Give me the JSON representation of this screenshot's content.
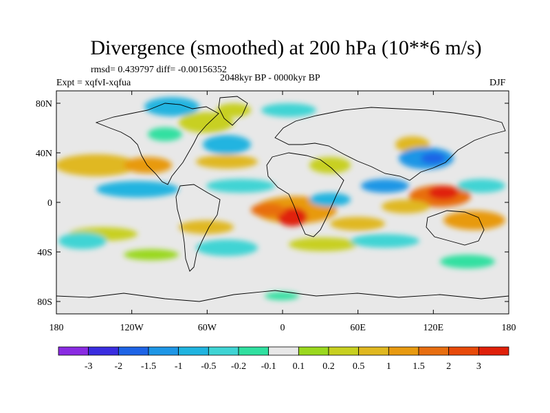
{
  "title": "Divergence (smoothed) at 200 hPa (10**6 m/s)",
  "stats": "rmsd= 0.439797 diff= -0.00156352",
  "experiment": "Expt = xqfvI-xqfua",
  "period": "2048kyr BP - 0000kyr BP",
  "season": "DJF",
  "lat_ticks": [
    {
      "value": 80,
      "label": "80N"
    },
    {
      "value": 40,
      "label": "40N"
    },
    {
      "value": 0,
      "label": "0"
    },
    {
      "value": -40,
      "label": "40S"
    },
    {
      "value": -80,
      "label": "80S"
    }
  ],
  "lon_ticks": [
    {
      "value": -180,
      "label": "180"
    },
    {
      "value": -120,
      "label": "120W"
    },
    {
      "value": -60,
      "label": "60W"
    },
    {
      "value": 0,
      "label": "0"
    },
    {
      "value": 60,
      "label": "60E"
    },
    {
      "value": 120,
      "label": "120E"
    },
    {
      "value": 180,
      "label": "180"
    }
  ],
  "colorbar": {
    "colors": [
      "#8a2be2",
      "#3a2de0",
      "#1e64e6",
      "#1e96e6",
      "#20b4e0",
      "#3fd4d4",
      "#30e0a0",
      "#e8e8e8",
      "#9ad81e",
      "#c8d020",
      "#e0b820",
      "#e89a10",
      "#e86e10",
      "#e84a0a",
      "#e0200a"
    ],
    "labels": [
      "-3",
      "-2",
      "-1.5",
      "-1",
      "-0.5",
      "-0.2",
      "-0.1",
      "0.1",
      "0.2",
      "0.5",
      "1",
      "1.5",
      "2",
      "3"
    ]
  },
  "map_colors": {
    "neutral": "#e8e8e8",
    "neg_weak": "#30e0a0",
    "neg_mid": "#3fd4d4",
    "neg_strong": "#20b4e0",
    "neg_stronger": "#1e96e6",
    "neg_max": "#1e64e6",
    "pos_weak": "#9ad81e",
    "pos_mid": "#c8d020",
    "pos_strong": "#e0b820",
    "pos_stronger": "#e89a10",
    "pos_max": "#e86e10",
    "pos_peak": "#e0200a"
  }
}
